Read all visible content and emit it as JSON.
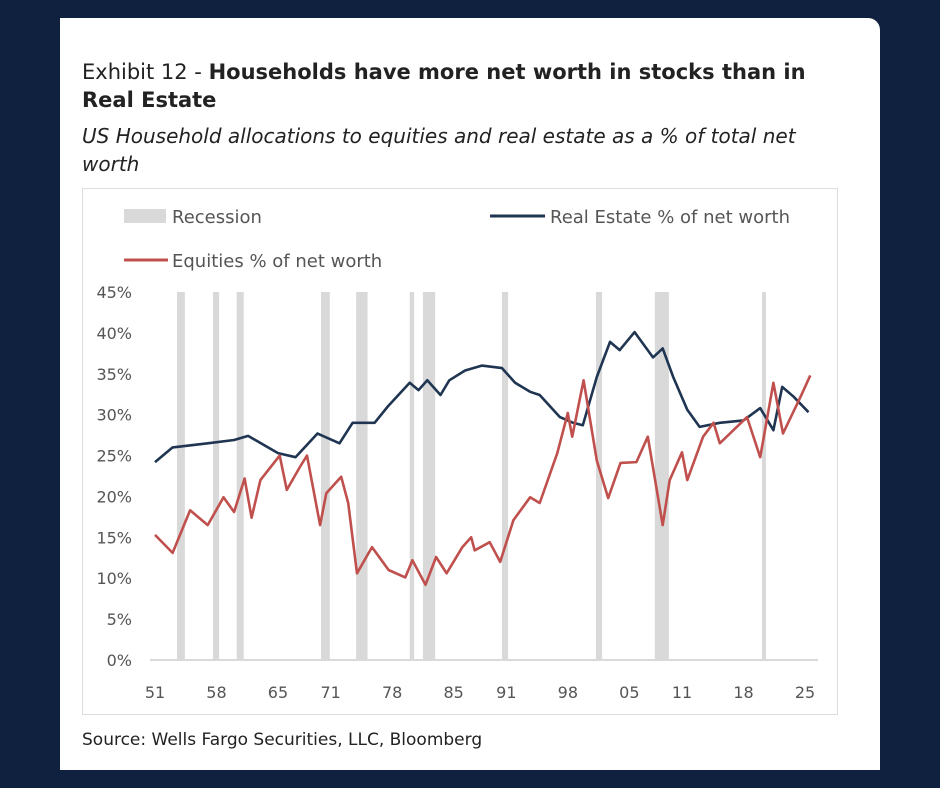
{
  "header": {
    "exhibit": "Exhibit 12 - ",
    "title_bold": "Households have more net worth in stocks than in Real Estate",
    "subtitle": "US Household allocations to equities and real estate as a % of total net worth"
  },
  "footer": {
    "source": "Source: Wells Fargo Securities, LLC, Bloomberg"
  },
  "colors": {
    "background": "#0f213e",
    "real_estate": "#1f3552",
    "equities": "#c0504d",
    "recession": "#d9d9d9"
  },
  "chart_data": {
    "type": "line",
    "title": "Households have more net worth in stocks than in Real Estate",
    "subtitle": "US Household allocations to equities and real estate as a % of total net worth",
    "ylim": [
      0,
      45
    ],
    "xlim": [
      1951,
      2025
    ],
    "y_ticks": [
      "0%",
      "5%",
      "10%",
      "15%",
      "20%",
      "25%",
      "30%",
      "35%",
      "40%",
      "45%"
    ],
    "y_tick_values": [
      0,
      5,
      10,
      15,
      20,
      25,
      30,
      35,
      40,
      45
    ],
    "x_ticks": [
      "51",
      "58",
      "65",
      "71",
      "78",
      "85",
      "91",
      "98",
      "05",
      "11",
      "18",
      "25"
    ],
    "x_tick_values": [
      1951,
      1958,
      1965,
      1971,
      1978,
      1985,
      1991,
      1998,
      2005,
      2011,
      2018,
      2025
    ],
    "grid": false,
    "legend_position": "top",
    "legend": {
      "recession": "Recession",
      "real_estate": "Real Estate % of net worth",
      "equities": "Equities % of net worth"
    },
    "recessions": [
      [
        1953.5,
        1954.4
      ],
      [
        1957.6,
        1958.3
      ],
      [
        1960.3,
        1961.1
      ],
      [
        1969.9,
        1970.9
      ],
      [
        1973.9,
        1975.2
      ],
      [
        1980.0,
        1980.5
      ],
      [
        1981.5,
        1982.9
      ],
      [
        1990.5,
        1991.2
      ],
      [
        2001.2,
        2001.9
      ],
      [
        2007.9,
        2009.5
      ],
      [
        2020.1,
        2020.4
      ]
    ],
    "series": [
      {
        "name": "Real Estate % of net worth",
        "color": "#1f3552",
        "x": [
          1951,
          1953,
          1957,
          1960,
          1961.6,
          1965,
          1967,
          1969.5,
          1972,
          1973.5,
          1976,
          1977.5,
          1980,
          1981,
          1982,
          1983.5,
          1984.5,
          1986.3,
          1988.2,
          1990.5,
          1992,
          1993.7,
          1994.8,
          1997.1,
          1998.6,
          1999.7,
          2001.3,
          2002.8,
          2003.9,
          2005.6,
          2007.7,
          2008.8,
          2010,
          2011.6,
          2013,
          2015.3,
          2018,
          2019.9,
          2021.4,
          2022.4,
          2023.7,
          2025.4
        ],
        "y": [
          24.2,
          26,
          26.5,
          26.9,
          27.4,
          25.3,
          24.8,
          27.7,
          26.5,
          29,
          29,
          31,
          33.9,
          33,
          34.2,
          32.4,
          34.2,
          35.4,
          36,
          35.7,
          33.9,
          32.8,
          32.4,
          29.7,
          29,
          28.7,
          34.6,
          38.9,
          37.9,
          40.1,
          37,
          38.1,
          34.6,
          30.6,
          28.5,
          29,
          29.3,
          30.8,
          28.1,
          33.4,
          32.2,
          30.3
        ]
      },
      {
        "name": "Equities % of net worth",
        "color": "#c0504d",
        "x": [
          1951,
          1953,
          1955,
          1957,
          1958.8,
          1960,
          1961.2,
          1962,
          1963,
          1965.2,
          1966,
          1967.5,
          1968.3,
          1969.8,
          1970.5,
          1972.2,
          1973,
          1974,
          1975.7,
          1977.6,
          1979.5,
          1980.3,
          1981.8,
          1983,
          1984.2,
          1986,
          1987,
          1987.4,
          1989.1,
          1990.3,
          1991.8,
          1993.7,
          1994.8,
          1996.8,
          1998,
          1998.5,
          1999.8,
          2001.3,
          2002.6,
          2004,
          2005.8,
          2007.1,
          2008.8,
          2009.6,
          2011,
          2011.6,
          2013.4,
          2014.6,
          2015.3,
          2018.4,
          2019.9,
          2021.4,
          2022.5,
          2024.5,
          2025.6
        ],
        "y": [
          15.3,
          13.1,
          18.3,
          16.5,
          19.9,
          18.1,
          22.2,
          17.4,
          22,
          25,
          20.8,
          23.6,
          25,
          16.5,
          20.4,
          22.4,
          19.2,
          10.6,
          13.8,
          11,
          10.1,
          12.2,
          9.2,
          12.6,
          10.6,
          13.8,
          15,
          13.4,
          14.4,
          12,
          17.1,
          19.9,
          19.2,
          25.3,
          30.2,
          27.3,
          34.2,
          24.4,
          19.8,
          24.1,
          24.2,
          27.3,
          16.5,
          22,
          25.4,
          22,
          27.3,
          29,
          26.5,
          29.7,
          24.8,
          33.9,
          27.7,
          32.2,
          34.8
        ]
      }
    ]
  }
}
